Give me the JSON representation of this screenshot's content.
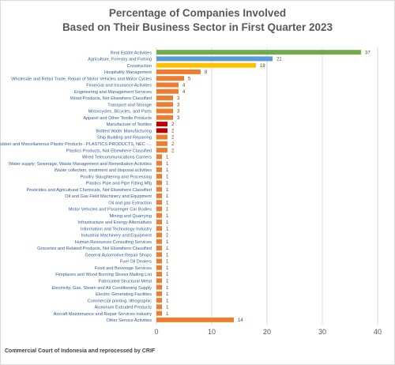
{
  "chart_data": {
    "type": "bar",
    "orientation": "horizontal",
    "title_lines": [
      "Percentage of Companies Involved",
      "Based on Their Business Sector in First Quarter 2023"
    ],
    "categories": [
      "Real Estate Activities",
      "Agriculture, Forestry and Fishing",
      "Construction",
      "Hospitality Management",
      "Wholesale and Retail Trade, Repair of Motor Vehicles and Motor Cycles",
      "Financial and Insurance Activities",
      "Engineering and Management Services",
      "Wood Products, Not Elsewhere Classified",
      "Transport and Storage",
      "Motorcycles, Bicycles, and Parts",
      "Apparel and Other Textile Products",
      "Manufacture of Textiles",
      "Bottled Water Manufacturing",
      "Ship Building and Repairing",
      "Rubber and Miscellaneous Plastic Products - PLASTICS PRODUCTS, NEC -...",
      "Plastics Products, Not Elsewhere Classified",
      "Wired Telecommunications Carriers",
      "Water supply; Sewerage, Waste Management and Remediation Activities",
      "Waste collection, treatment and disposal activities",
      "Poultry Slaughtering and Processing",
      "Plastics Pipe and Pipe Fitting Mfg",
      "Pesticides and Agricultural Chemicals, Not Elsewhere Classified",
      "Oil and Gas Field Machinery and Equipment",
      "Oil and gas Extraction",
      "Motor Vehicles and Passenger Car Bodies",
      "Mining and Quarrying",
      "Infrastructure and Energy Alternatives",
      "Information and Technology Industry",
      "Industrial Machinery and Equipment",
      "Human Resources Consulting Services",
      "Groceries and Related Products, Not Elsewhere Classified",
      "General Automotive Repair Shops",
      "Fuel Oil Dealers",
      "Food and Beverage Services",
      "Fireplaces and Wood Burning Stoves Mailing List",
      "Fabricated Structural Metal",
      "Electricity, Gas, Steam and Air Conditioning Supply",
      "Electric Generating Facilities",
      "Commercial printing, lithographic",
      "Aluminum Extruded Products",
      "Aircraft Maintenance and Repair Services industry",
      "Other Service Activities"
    ],
    "values": [
      37,
      21,
      18,
      8,
      5,
      4,
      4,
      3,
      3,
      3,
      3,
      2,
      2,
      2,
      2,
      2,
      1,
      1,
      1,
      1,
      1,
      1,
      1,
      1,
      1,
      1,
      1,
      1,
      1,
      1,
      1,
      1,
      1,
      1,
      1,
      1,
      1,
      1,
      1,
      1,
      1,
      14
    ],
    "bar_colors": [
      "#70ad47",
      "#5b9bd5",
      "#ffc000",
      "#ed7d31",
      "#ed7d31",
      "#ed7d31",
      "#ed7d31",
      "#ed7d31",
      "#ed7d31",
      "#ed7d31",
      "#ed7d31",
      "#c00000",
      "#c00000",
      "#ed7d31",
      "#ed7d31",
      "#ed7d31",
      "#ed7d31",
      "#ed7d31",
      "#ed7d31",
      "#ed7d31",
      "#ed7d31",
      "#ed7d31",
      "#ed7d31",
      "#ed7d31",
      "#ed7d31",
      "#ed7d31",
      "#ed7d31",
      "#ed7d31",
      "#ed7d31",
      "#ed7d31",
      "#ed7d31",
      "#ed7d31",
      "#ed7d31",
      "#ed7d31",
      "#ed7d31",
      "#ed7d31",
      "#ed7d31",
      "#ed7d31",
      "#ed7d31",
      "#ed7d31",
      "#ed7d31",
      "#ed7d31"
    ],
    "xlim": [
      0,
      40
    ],
    "xticks": [
      0,
      10,
      20,
      30,
      40
    ],
    "grid": "vertical",
    "legend": "none",
    "category_label_color": "#2e5c9a",
    "value_label_color": "#843c0c",
    "gridline_color": "#d9d9d9"
  },
  "footer": "Commercial Court of Indonesia and reprocessed by CRIF"
}
